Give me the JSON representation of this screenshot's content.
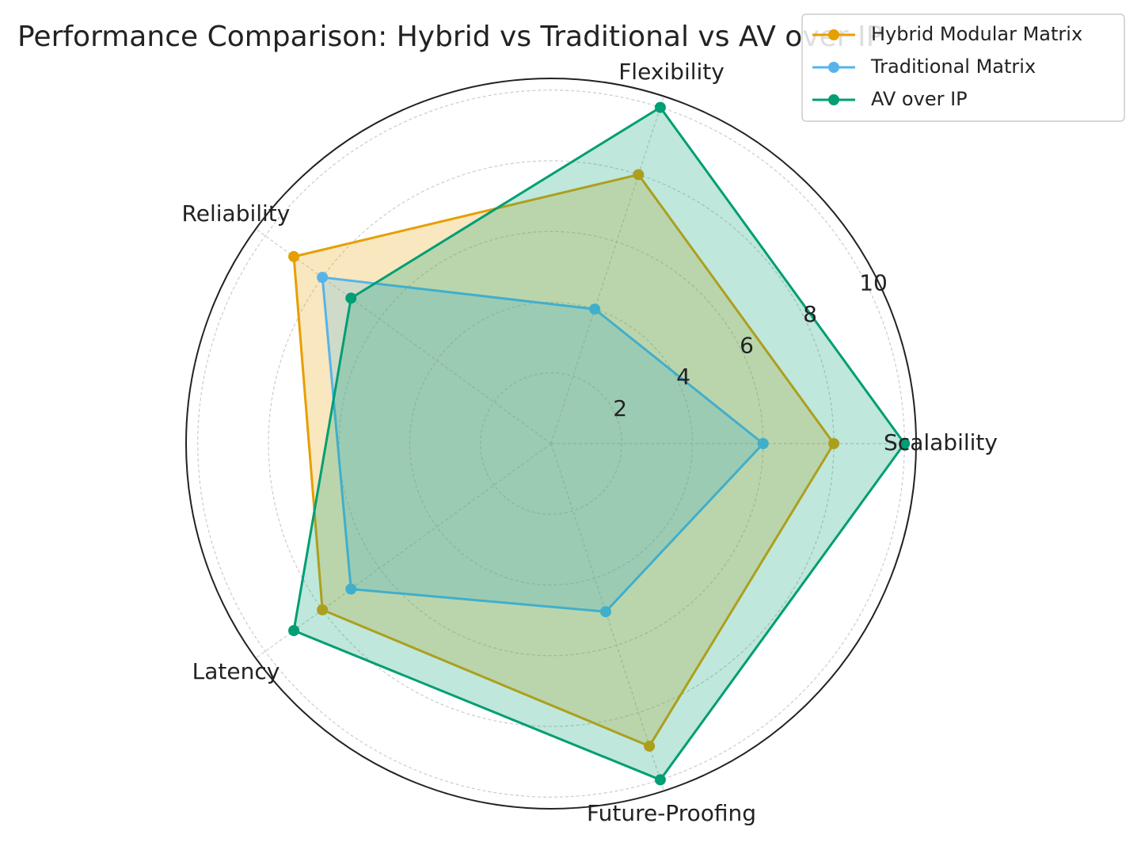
{
  "chart_data": {
    "type": "radar",
    "title": "Performance Comparison: Hybrid vs Traditional vs AV over IP",
    "categories": [
      "Scalability",
      "Flexibility",
      "Reliability",
      "Latency",
      "Future-Proofing"
    ],
    "series": [
      {
        "name": "Hybrid Modular Matrix",
        "color": "#E69F00",
        "values": [
          8,
          8,
          9,
          8,
          9
        ]
      },
      {
        "name": "Traditional Matrix",
        "color": "#56B4E9",
        "values": [
          6,
          4,
          8,
          7,
          5
        ]
      },
      {
        "name": "AV over IP",
        "color": "#009E73",
        "values": [
          10,
          10,
          7,
          9,
          10
        ]
      }
    ],
    "ylim": [
      0,
      10.33
    ],
    "yticks": [
      2,
      4,
      6,
      8,
      10
    ],
    "grid": true,
    "legend": "upper right"
  }
}
